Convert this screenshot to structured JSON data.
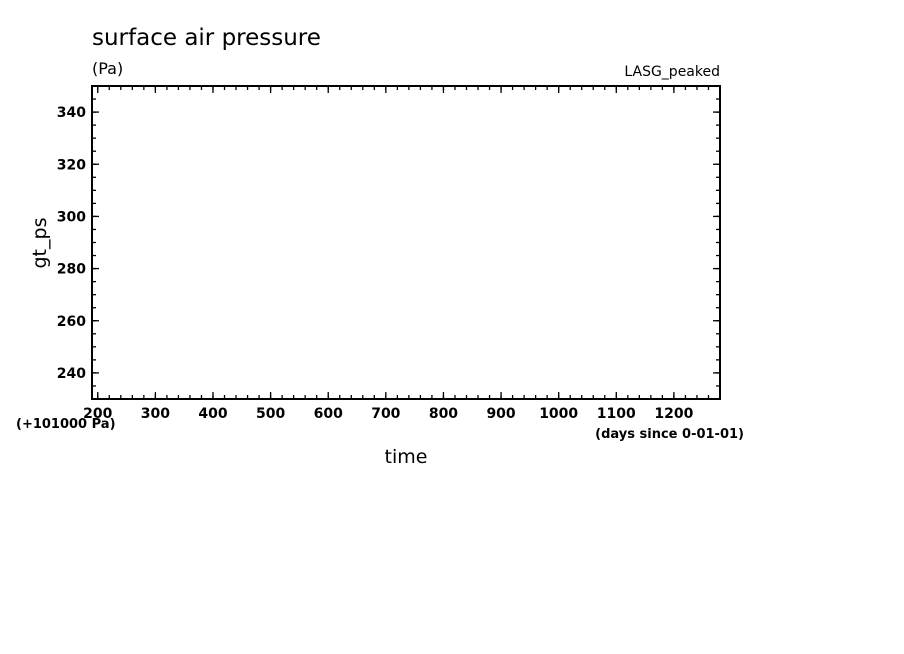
{
  "chart_data": {
    "type": "line",
    "title": "surface air pressure",
    "units": "(Pa)",
    "experiment": "LASG_peaked",
    "xlabel": "time",
    "ylabel": "gt_ps",
    "x_unit_note": "(days since 0-01-01)",
    "y_offset_note": "(+101000 Pa)",
    "xlim": [
      190,
      1280
    ],
    "ylim": [
      230,
      350
    ],
    "x_ticks": [
      200,
      300,
      400,
      500,
      600,
      700,
      800,
      900,
      1000,
      1100,
      1200
    ],
    "x_minor_step": 20,
    "y_ticks": [
      240,
      260,
      280,
      300,
      320,
      340
    ],
    "y_minor_step": 5,
    "grid": false,
    "series": []
  }
}
